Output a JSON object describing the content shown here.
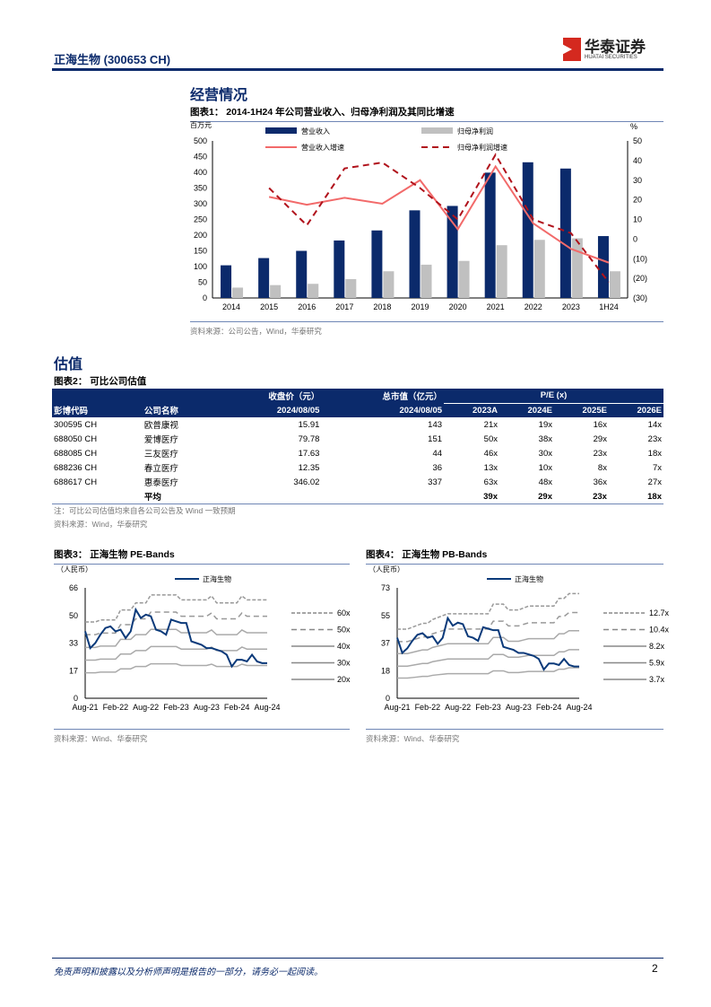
{
  "header": {
    "title": "正海生物 (300653 CH)",
    "logo_cn": "华泰证券",
    "logo_en": "HUATAI SECURITIES"
  },
  "section1": {
    "title": "经营情况"
  },
  "section2": {
    "title": "估值"
  },
  "fig1": {
    "title": "图表1：  2014-1H24 年公司营业收入、归母净利润及其同比增速",
    "source": "资料来源：公司公告，Wind，华泰研究"
  },
  "fig2": {
    "title": "图表2：  可比公司估值",
    "note": "注：可比公司估值均来自各公司公告及 Wind 一致预期",
    "source": "资料来源：Wind，华泰研究",
    "headers": {
      "price": "收盘价（元）",
      "mcap": "总市值（亿元）",
      "pe": "P/E   (x)",
      "code": "彭博代码",
      "name": "公司名称",
      "date1": "2024/08/05",
      "date2": "2024/08/05",
      "y1": "2023A",
      "y2": "2024E",
      "y3": "2025E",
      "y4": "2026E"
    },
    "rows": [
      [
        "300595 CH",
        "欧普康视",
        "15.91",
        "143",
        "21x",
        "19x",
        "16x",
        "14x"
      ],
      [
        "688050 CH",
        "爱博医疗",
        "79.78",
        "151",
        "50x",
        "38x",
        "29x",
        "23x"
      ],
      [
        "688085 CH",
        "三友医疗",
        "17.63",
        "44",
        "46x",
        "30x",
        "23x",
        "18x"
      ],
      [
        "688236 CH",
        "春立医疗",
        "12.35",
        "36",
        "13x",
        "10x",
        "8x",
        "7x"
      ],
      [
        "688617 CH",
        "惠泰医疗",
        "346.02",
        "337",
        "63x",
        "48x",
        "36x",
        "27x"
      ]
    ],
    "avg": {
      "label": "平均",
      "values": [
        "39x",
        "29x",
        "23x",
        "18x"
      ]
    }
  },
  "fig3": {
    "title": "图表3：  正海生物 PE-Bands",
    "source": "资料来源：Wind、华泰研究"
  },
  "fig4": {
    "title": "图表4：  正海生物 PB-Bands",
    "source": "资料来源：Wind、华泰研究"
  },
  "footer": {
    "disclaimer": "免责声明和披露以及分析师声明是报告的一部分，请务必一起阅读。",
    "page": "2"
  },
  "chart_data": [
    {
      "type": "bar",
      "title": "2014-1H24 年公司营业收入、归母净利润及其同比增速",
      "categories": [
        "2014",
        "2015",
        "2016",
        "2017",
        "2018",
        "2019",
        "2020",
        "2021",
        "2022",
        "2023",
        "1H24"
      ],
      "ylabel": "百万元",
      "y2label": "%",
      "ylim": [
        0,
        500
      ],
      "yticks": [
        "0",
        "50",
        "100",
        "150",
        "200",
        "250",
        "300",
        "350",
        "400",
        "450",
        "500"
      ],
      "y2lim": [
        -30,
        50
      ],
      "y2ticks": [
        "(30)",
        "(20)",
        "(10)",
        "0",
        "10",
        "20",
        "30",
        "40",
        "50"
      ],
      "series": [
        {
          "name": "营业收入",
          "type": "bar",
          "color": "#0b2a6b",
          "values": [
            104,
            127,
            150,
            183,
            215,
            279,
            293,
            399,
            432,
            412,
            197
          ]
        },
        {
          "name": "归母净利润",
          "type": "bar",
          "color": "#c0c0c0",
          "values": [
            33,
            41,
            45,
            60,
            85,
            106,
            118,
            168,
            185,
            190,
            85
          ]
        },
        {
          "name": "营业收入增速",
          "type": "line",
          "axis": "right",
          "color": "#f26a6a",
          "values": [
            null,
            21.5,
            17.5,
            21,
            18,
            30,
            5,
            37,
            8,
            -5,
            -12
          ]
        },
        {
          "name": "归母净利润增速",
          "type": "line",
          "axis": "right",
          "dashed": true,
          "color": "#b0121b",
          "values": [
            null,
            26,
            7,
            36,
            39,
            26,
            10,
            43,
            10,
            3,
            -22
          ]
        }
      ]
    },
    {
      "type": "line",
      "title": "正海生物 PE-Bands",
      "ylabel": "（人民币）",
      "ylim": [
        0,
        66
      ],
      "yticks": [
        "0",
        "17",
        "33",
        "50",
        "66"
      ],
      "xticks": [
        "Aug-21",
        "Feb-22",
        "Aug-22",
        "Feb-23",
        "Aug-23",
        "Feb-24",
        "Aug-24"
      ],
      "price_name": "正海生物",
      "price": [
        40,
        30,
        33,
        38,
        42,
        43,
        40,
        41,
        36,
        40,
        53,
        48,
        50,
        49,
        41,
        40,
        38,
        47,
        46,
        45,
        45,
        34,
        33,
        32,
        30,
        30,
        29,
        28,
        26,
        19,
        23,
        23,
        22,
        26,
        22,
        21,
        21
      ],
      "band_base": [
        0.76,
        0.76,
        0.76,
        0.78,
        0.78,
        0.78,
        0.78,
        0.88,
        0.88,
        0.88,
        0.95,
        0.95,
        0.95,
        1.03,
        1.03,
        1.03,
        1.03,
        1.03,
        1.03,
        0.98,
        0.98,
        0.98,
        0.98,
        0.98,
        0.98,
        1.02,
        0.95,
        0.95,
        0.95,
        0.95,
        0.95,
        1.02,
        0.98,
        0.98,
        0.98,
        0.98,
        0.98
      ],
      "bands": [
        {
          "label": "60x",
          "m": 60,
          "style": "dash"
        },
        {
          "label": "50x",
          "m": 50,
          "style": "dash2"
        },
        {
          "label": "40x",
          "m": 40
        },
        {
          "label": "30x",
          "m": 30
        },
        {
          "label": "20x",
          "m": 20
        }
      ]
    },
    {
      "type": "line",
      "title": "正海生物 PB-Bands",
      "ylabel": "（人民币）",
      "ylim": [
        0,
        73
      ],
      "yticks": [
        "0",
        "18",
        "37",
        "55",
        "73"
      ],
      "xticks": [
        "Aug-21",
        "Feb-22",
        "Aug-22",
        "Feb-23",
        "Aug-23",
        "Feb-24",
        "Aug-24"
      ],
      "price_name": "正海生物",
      "price": [
        40,
        30,
        33,
        38,
        42,
        43,
        40,
        41,
        36,
        40,
        53,
        48,
        50,
        49,
        41,
        40,
        38,
        47,
        46,
        45,
        45,
        34,
        33,
        32,
        30,
        30,
        29,
        28,
        26,
        19,
        23,
        23,
        22,
        26,
        22,
        21,
        21
      ],
      "band_base": [
        3.6,
        3.6,
        3.6,
        3.7,
        3.8,
        3.9,
        3.9,
        4.1,
        4.2,
        4.3,
        4.4,
        4.4,
        4.4,
        4.4,
        4.4,
        4.4,
        4.4,
        4.4,
        4.4,
        4.9,
        4.9,
        4.9,
        4.6,
        4.6,
        4.6,
        4.7,
        4.8,
        4.8,
        4.8,
        4.8,
        4.8,
        4.8,
        5.2,
        5.2,
        5.45,
        5.45,
        5.45
      ],
      "bands": [
        {
          "label": "12.7x",
          "m": 12.7,
          "style": "dash"
        },
        {
          "label": "10.4x",
          "m": 10.4,
          "style": "dash2"
        },
        {
          "label": "8.2x",
          "m": 8.2
        },
        {
          "label": "5.9x",
          "m": 5.9
        },
        {
          "label": "3.7x",
          "m": 3.7
        }
      ]
    }
  ]
}
